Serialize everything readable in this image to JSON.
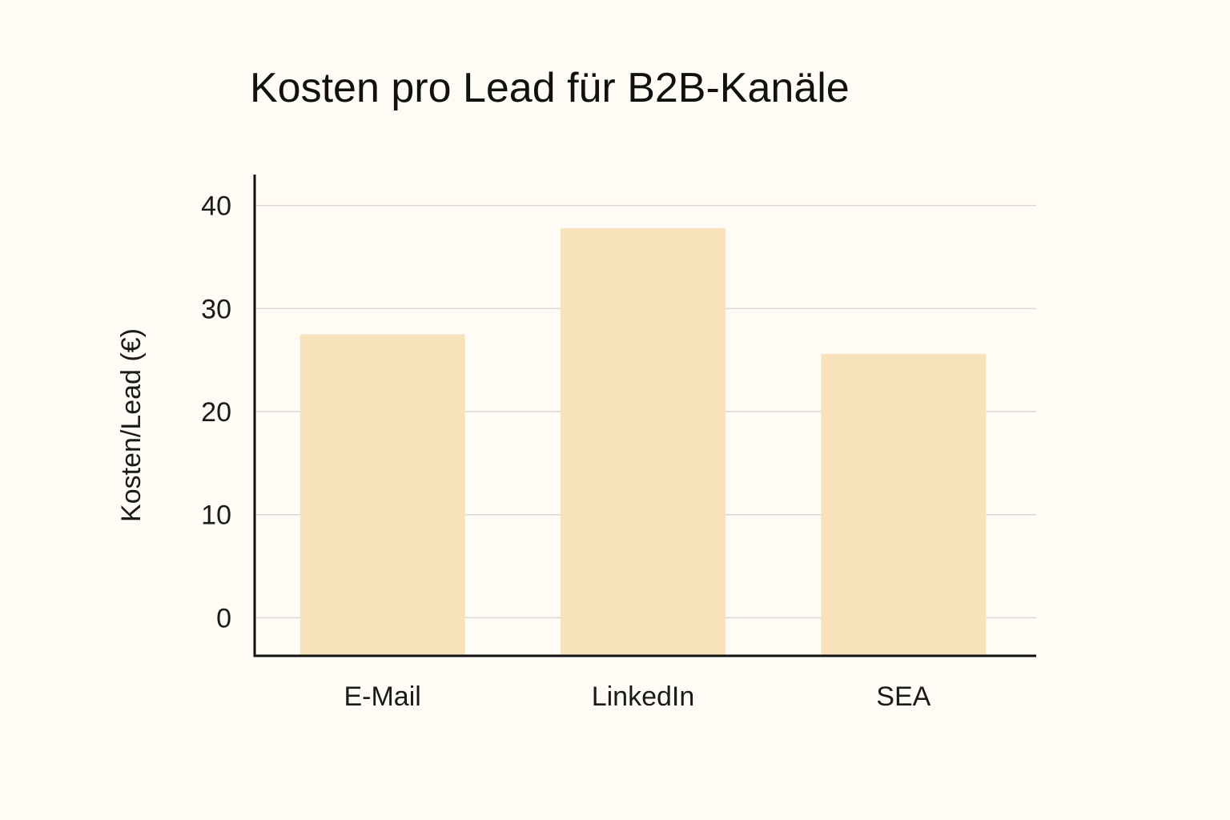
{
  "chart_data": {
    "type": "bar",
    "title": "Kosten pro Lead für B2B-Kanäle",
    "xlabel": "",
    "ylabel": "Kosten/Lead (€)",
    "categories": [
      "E-Mail",
      "LinkedIn",
      "SEA"
    ],
    "values": [
      27.5,
      37.8,
      25.6
    ],
    "ylim": [
      -3.7,
      43
    ],
    "yticks": [
      0,
      10,
      20,
      30,
      40
    ],
    "grid": true,
    "bar_color": "#f7e2bc"
  }
}
